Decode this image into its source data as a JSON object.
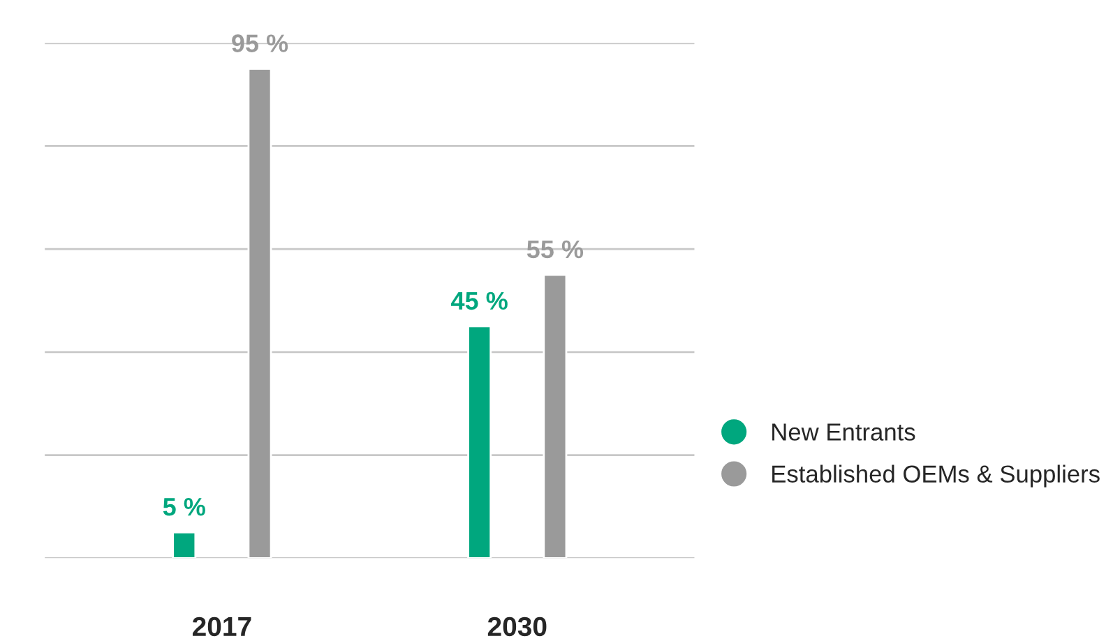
{
  "chart_data": {
    "type": "bar",
    "categories": [
      "2017",
      "2030"
    ],
    "series": [
      {
        "name": "New Entrants",
        "color": "#00a77e",
        "values": [
          5,
          45
        ],
        "value_labels": [
          "5 %",
          "45 %"
        ]
      },
      {
        "name": "Established OEMs & Suppliers",
        "color": "#9a9a9a",
        "values": [
          95,
          55
        ],
        "value_labels": [
          "95 %",
          "55 %"
        ]
      }
    ],
    "ylim": [
      0,
      100
    ],
    "yticks": [
      {
        "value": 0,
        "label": null
      },
      {
        "value": 20,
        "label": null
      },
      {
        "value": 40,
        "label": null
      },
      {
        "value": 60,
        "label": null
      },
      {
        "value": 80,
        "label": null
      },
      {
        "value": 100,
        "label": null
      }
    ],
    "tick_labels": "x",
    "grid": "y",
    "legend": "right"
  }
}
